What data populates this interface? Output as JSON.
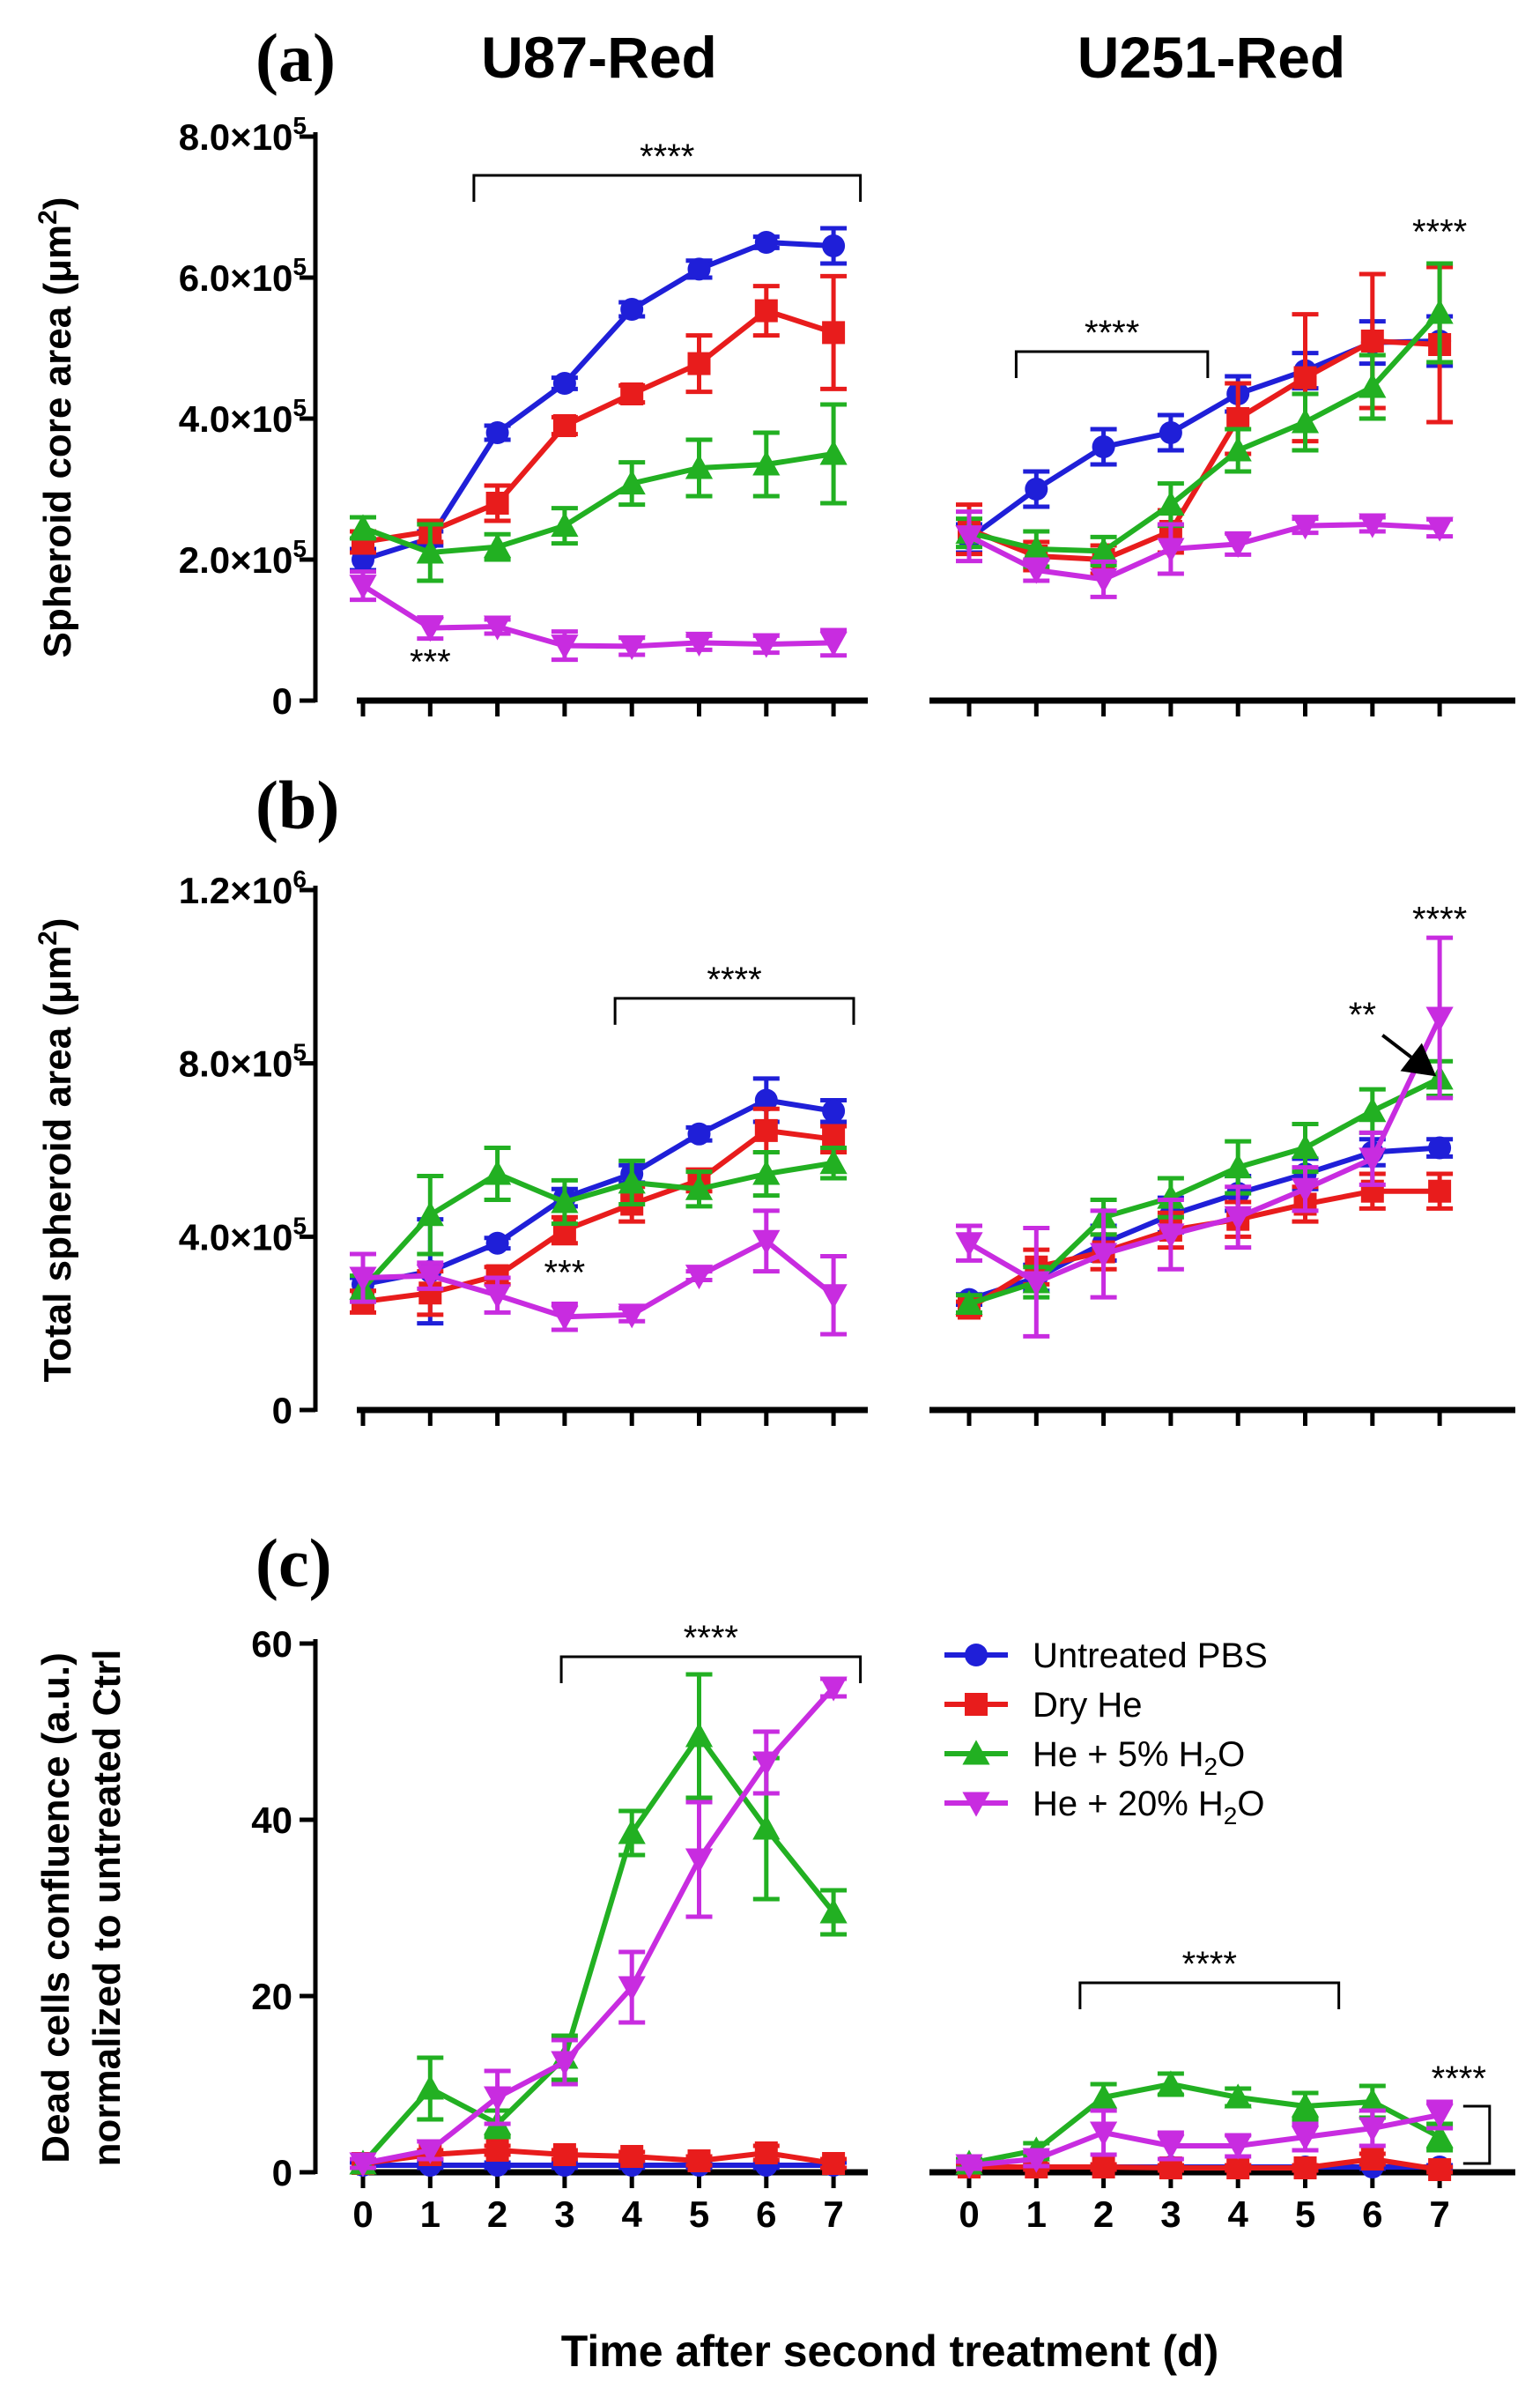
{
  "figure": {
    "colors": {
      "untreated": "#1f1fd8",
      "dry": "#e81c1c",
      "he5": "#22b022",
      "he20": "#c82ce0",
      "axis": "#000000"
    },
    "xlabel": "Time after second treatment (d)",
    "legend": {
      "entries": [
        {
          "key": "untreated",
          "label": "Untreated PBS",
          "marker": "circle"
        },
        {
          "key": "dry",
          "label": "Dry He",
          "marker": "square"
        },
        {
          "key": "he5",
          "label": "He + 5% H",
          "sub": "2",
          "tail": "O",
          "marker": "triangle-up"
        },
        {
          "key": "he20",
          "label": "He + 20% H",
          "sub": "2",
          "tail": "O",
          "marker": "triangle-down"
        }
      ]
    }
  },
  "chart_data": [
    {
      "type": "line",
      "panel": "(a)",
      "ylabel": "Spheroid core area (μm",
      "ylabel_sup": "2",
      "ylabel_tail": ")",
      "ylim": [
        0,
        800000
      ],
      "yticks": [
        {
          "value": 0,
          "base": "0"
        },
        {
          "value": 200000,
          "base": "2.0×10",
          "exp": "5"
        },
        {
          "value": 400000,
          "base": "4.0×10",
          "exp": "5"
        },
        {
          "value": 600000,
          "base": "6.0×10",
          "exp": "5"
        },
        {
          "value": 800000,
          "base": "8.0×10",
          "exp": "5"
        }
      ],
      "groups": [
        {
          "name": "U87-Red",
          "x": [
            0,
            1,
            2,
            3,
            4,
            5,
            6,
            7
          ],
          "series": [
            {
              "key": "untreated",
              "values": [
                200000,
                230000,
                380000,
                450000,
                555000,
                612000,
                650000,
                645000
              ],
              "err": [
                15000,
                10000,
                10000,
                8000,
                10000,
                12000,
                8000,
                25000
              ]
            },
            {
              "key": "dry",
              "values": [
                225000,
                240000,
                280000,
                390000,
                435000,
                478000,
                553000,
                522000
              ],
              "err": [
                15000,
                15000,
                25000,
                12000,
                12000,
                40000,
                35000,
                80000
              ]
            },
            {
              "key": "he5",
              "values": [
                245000,
                210000,
                218000,
                248000,
                308000,
                330000,
                335000,
                350000
              ],
              "err": [
                15000,
                40000,
                18000,
                25000,
                30000,
                40000,
                45000,
                70000
              ]
            },
            {
              "key": "he20",
              "values": [
                163000,
                103000,
                105000,
                78000,
                77000,
                82000,
                80000,
                82000
              ],
              "err": [
                20000,
                15000,
                10000,
                20000,
                12000,
                10000,
                12000,
                18000
              ]
            }
          ],
          "annotations": [
            {
              "text": "****",
              "type": "bracket",
              "from": 1.65,
              "to": 7.4,
              "y": 745000
            },
            {
              "text": "***",
              "type": "label",
              "x": 1.0,
              "y": 38000
            }
          ]
        },
        {
          "name": "U251-Red",
          "x": [
            0,
            1,
            2,
            3,
            4,
            5,
            6,
            7
          ],
          "series": [
            {
              "key": "untreated",
              "values": [
                230000,
                300000,
                360000,
                380000,
                435000,
                468000,
                508000,
                510000
              ],
              "err": [
                20000,
                25000,
                25000,
                25000,
                25000,
                25000,
                30000,
                35000
              ]
            },
            {
              "key": "dry",
              "values": [
                243000,
                205000,
                200000,
                240000,
                400000,
                458000,
                510000,
                505000
              ],
              "err": [
                35000,
                20000,
                20000,
                30000,
                50000,
                90000,
                95000,
                110000
              ]
            },
            {
              "key": "he5",
              "values": [
                238000,
                215000,
                212000,
                278000,
                355000,
                395000,
                445000,
                550000
              ],
              "err": [
                20000,
                25000,
                20000,
                30000,
                30000,
                40000,
                45000,
                70000
              ]
            },
            {
              "key": "he20",
              "values": [
                233000,
                185000,
                172000,
                215000,
                222000,
                248000,
                250000,
                245000
              ],
              "err": [
                35000,
                15000,
                25000,
                35000,
                15000,
                10000,
                10000,
                12000
              ]
            }
          ],
          "annotations": [
            {
              "text": "****",
              "type": "bracket",
              "from": 0.7,
              "to": 3.55,
              "y": 495000
            },
            {
              "text": "****",
              "type": "label",
              "x": 7.0,
              "y": 648000
            }
          ]
        }
      ]
    },
    {
      "type": "line",
      "panel": "(b)",
      "ylabel": "Total spheroid area (μm",
      "ylabel_sup": "2",
      "ylabel_tail": ")",
      "ylim": [
        0,
        1200000
      ],
      "yticks": [
        {
          "value": 0,
          "base": "0"
        },
        {
          "value": 400000,
          "base": "4.0×10",
          "exp": "5"
        },
        {
          "value": 800000,
          "base": "8.0×10",
          "exp": "5"
        },
        {
          "value": 1200000,
          "base": "1.2×10",
          "exp": "6"
        }
      ],
      "groups": [
        {
          "name": "U87-Red",
          "x": [
            0,
            1,
            2,
            3,
            4,
            5,
            6,
            7
          ],
          "series": [
            {
              "key": "untreated",
              "values": [
                290000,
                320000,
                385000,
                490000,
                545000,
                637000,
                715000,
                690000
              ],
              "err": [
                15000,
                120000,
                12000,
                20000,
                20000,
                15000,
                50000,
                25000
              ]
            },
            {
              "key": "dry",
              "values": [
                250000,
                270000,
                310000,
                415000,
                475000,
                530000,
                645000,
                625000
              ],
              "err": [
                25000,
                50000,
                20000,
                30000,
                40000,
                25000,
                50000,
                30000
              ]
            },
            {
              "key": "he5",
              "values": [
                280000,
                450000,
                545000,
                480000,
                525000,
                510000,
                545000,
                570000
              ],
              "err": [
                30000,
                90000,
                60000,
                50000,
                50000,
                40000,
                50000,
                35000
              ]
            },
            {
              "key": "he20",
              "values": [
                305000,
                310000,
                265000,
                215000,
                220000,
                310000,
                390000,
                265000
              ],
              "err": [
                55000,
                30000,
                40000,
                30000,
                15000,
                10000,
                70000,
                90000
              ]
            }
          ],
          "annotations": [
            {
              "text": "****",
              "type": "bracket",
              "from": 3.75,
              "to": 7.3,
              "y": 950000
            },
            {
              "text": "***",
              "type": "label",
              "x": 3.0,
              "y": 290000
            }
          ]
        },
        {
          "name": "U251-Red",
          "x": [
            0,
            1,
            2,
            3,
            4,
            5,
            6,
            7
          ],
          "series": [
            {
              "key": "untreated",
              "values": [
                255000,
                305000,
                385000,
                450000,
                500000,
                545000,
                595000,
                605000
              ],
              "err": [
                12000,
                30000,
                40000,
                40000,
                40000,
                35000,
                30000,
                20000
              ]
            },
            {
              "key": "dry",
              "values": [
                235000,
                330000,
                365000,
                415000,
                440000,
                475000,
                505000,
                505000
              ],
              "err": [
                15000,
                40000,
                40000,
                40000,
                40000,
                40000,
                40000,
                40000
              ]
            },
            {
              "key": "he5",
              "values": [
                245000,
                295000,
                445000,
                490000,
                560000,
                605000,
                690000,
                765000
              ],
              "err": [
                20000,
                35000,
                40000,
                45000,
                60000,
                55000,
                50000,
                40000
              ]
            },
            {
              "key": "he20",
              "values": [
                385000,
                295000,
                360000,
                405000,
                445000,
                510000,
                580000,
                905000
              ],
              "err": [
                40000,
                125000,
                100000,
                80000,
                70000,
                50000,
                60000,
                185000
              ]
            }
          ],
          "annotations": [
            {
              "text": "****",
              "type": "label",
              "x": 7.0,
              "y": 1105000
            },
            {
              "text": "**",
              "type": "label",
              "x": 5.85,
              "y": 885000
            },
            {
              "type": "arrow",
              "from": [
                6.15,
                865000
              ],
              "to": [
                6.95,
                770000
              ]
            }
          ]
        }
      ]
    },
    {
      "type": "line",
      "panel": "(c)",
      "ylabel": "Dead cells confluence (a.u.)",
      "ylabel2": "normalized to untreated Ctrl",
      "ylim": [
        0,
        60
      ],
      "yticks": [
        {
          "value": 0,
          "base": "0"
        },
        {
          "value": 20,
          "base": "20"
        },
        {
          "value": 40,
          "base": "40"
        },
        {
          "value": 60,
          "base": "60"
        }
      ],
      "xticklabels": [
        "0",
        "1",
        "2",
        "3",
        "4",
        "5",
        "6",
        "7"
      ],
      "groups": [
        {
          "name": "U87-Red",
          "x": [
            0,
            1,
            2,
            3,
            4,
            5,
            6,
            7
          ],
          "series": [
            {
              "key": "untreated",
              "values": [
                0.8,
                0.8,
                0.8,
                0.8,
                0.8,
                0.8,
                0.8,
                0.8
              ],
              "err": [
                0.3,
                0.3,
                0.3,
                0.3,
                0.3,
                0.3,
                0.3,
                0.3
              ]
            },
            {
              "key": "dry",
              "values": [
                1.0,
                2.0,
                2.5,
                2.0,
                1.8,
                1.3,
                2.2,
                1.0
              ],
              "err": [
                0.5,
                0.5,
                0.5,
                0.5,
                0.5,
                0.5,
                0.8,
                0.5
              ]
            },
            {
              "key": "he5",
              "values": [
                1.0,
                9.5,
                5.5,
                13.0,
                38.5,
                49.5,
                39.0,
                29.5
              ],
              "err": [
                0.5,
                3.5,
                1.5,
                2.5,
                2.5,
                7.0,
                8.0,
                2.5
              ]
            },
            {
              "key": "he20",
              "values": [
                1.0,
                2.5,
                8.5,
                12.5,
                21.0,
                35.5,
                46.5,
                55.0
              ],
              "err": [
                0.5,
                1.0,
                3.0,
                2.5,
                4.0,
                6.5,
                3.5,
                1.0
              ]
            }
          ],
          "annotations": [
            {
              "text": "****",
              "type": "bracket",
              "from": 2.95,
              "to": 7.4,
              "y": 58.5
            }
          ]
        },
        {
          "name": "U251-Red",
          "x": [
            0,
            1,
            2,
            3,
            4,
            5,
            6,
            7
          ],
          "series": [
            {
              "key": "untreated",
              "values": [
                0.6,
                0.6,
                0.6,
                0.6,
                0.6,
                0.6,
                0.6,
                0.6
              ],
              "err": [
                0.2,
                0.2,
                0.2,
                0.2,
                0.2,
                0.2,
                0.2,
                0.2
              ]
            },
            {
              "key": "dry",
              "values": [
                0.6,
                0.6,
                0.6,
                0.5,
                0.5,
                0.5,
                1.5,
                0.3
              ],
              "err": [
                0.3,
                0.3,
                0.3,
                0.3,
                0.3,
                0.3,
                0.6,
                0.3
              ]
            },
            {
              "key": "he5",
              "values": [
                1.0,
                2.5,
                8.5,
                10.0,
                8.5,
                7.5,
                8.0,
                4.0
              ],
              "err": [
                0.5,
                0.8,
                1.5,
                1.2,
                1.0,
                1.5,
                1.8,
                1.5
              ]
            },
            {
              "key": "he20",
              "values": [
                0.8,
                1.5,
                4.5,
                3.0,
                3.0,
                4.0,
                5.0,
                6.5
              ],
              "err": [
                0.4,
                0.8,
                2.5,
                1.5,
                1.2,
                1.5,
                2.0,
                1.5
              ]
            }
          ],
          "annotations": [
            {
              "text": "****",
              "type": "bracket",
              "from": 1.65,
              "to": 5.5,
              "y": 21.5
            },
            {
              "text": "****",
              "type": "right-bracket",
              "x": 7.35,
              "from": 1.0,
              "to": 7.5
            }
          ]
        }
      ]
    }
  ]
}
